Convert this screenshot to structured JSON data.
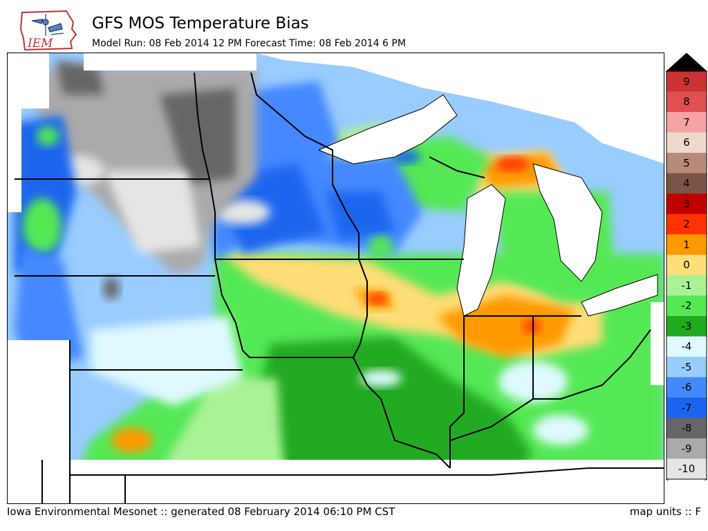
{
  "header": {
    "logo_text": "IEM",
    "title": "GFS MOS Temperature Bias",
    "subtitle": "Model Run: 08 Feb 2014 12 PM Forecast Time: 08 Feb 2014 6 PM"
  },
  "legend": {
    "bins": [
      {
        "label": "9",
        "color": "#cc3333"
      },
      {
        "label": "8",
        "color": "#e05050"
      },
      {
        "label": "7",
        "color": "#f5a3a3"
      },
      {
        "label": "6",
        "color": "#efd8cc"
      },
      {
        "label": "5",
        "color": "#b88a7a"
      },
      {
        "label": "4",
        "color": "#7b5446"
      },
      {
        "label": "3",
        "color": "#c00000"
      },
      {
        "label": "2",
        "color": "#ff3300"
      },
      {
        "label": "1",
        "color": "#ff9900"
      },
      {
        "label": "0",
        "color": "#ffdd77"
      },
      {
        "label": "-1",
        "color": "#aaf296"
      },
      {
        "label": "-2",
        "color": "#55e855"
      },
      {
        "label": "-3",
        "color": "#20aa20"
      },
      {
        "label": "-4",
        "color": "#dff9ff"
      },
      {
        "label": "-5",
        "color": "#99ccff"
      },
      {
        "label": "-6",
        "color": "#4488ff"
      },
      {
        "label": "-7",
        "color": "#1a66ee"
      },
      {
        "label": "-8",
        "color": "#666666"
      },
      {
        "label": "-9",
        "color": "#aaaaaa"
      },
      {
        "label": "-10",
        "color": "#e5e5e5"
      }
    ],
    "top_arrow_color": "#000000",
    "bottom_arrow_color": "#ffffff"
  },
  "footer": {
    "credit": "Iowa Environmental Mesonet :: generated 08 February 2014 06:10 PM CST",
    "units": "map units :: F"
  }
}
